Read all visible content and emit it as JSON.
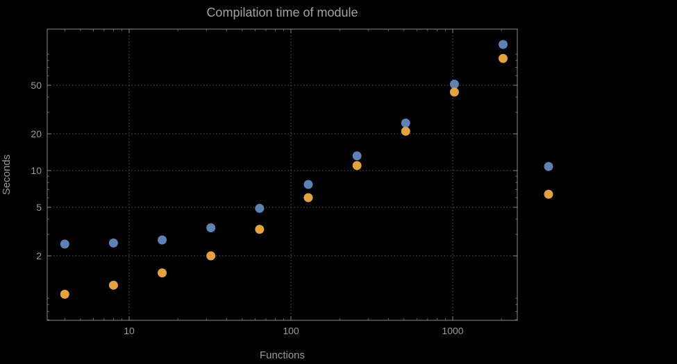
{
  "page": {
    "background": "#000000"
  },
  "chart_data": {
    "type": "scatter",
    "title": "Compilation time of module",
    "xlabel": "Functions",
    "ylabel": "Seconds",
    "x_scale": "log",
    "y_scale": "log",
    "x_ticks": [
      10,
      100,
      1000
    ],
    "y_ticks": [
      2,
      5,
      10,
      20,
      50
    ],
    "x_range": [
      3.1,
      2500
    ],
    "y_range": [
      0.59,
      145
    ],
    "grid": "dotted",
    "x": [
      4,
      8,
      16,
      32,
      64,
      128,
      256,
      512,
      1024,
      2048
    ],
    "series": [
      {
        "name": "series-blue",
        "color": "#5e82b5",
        "values": [
          2.5,
          2.55,
          2.7,
          3.4,
          4.9,
          7.7,
          13.2,
          24.5,
          51,
          108
        ]
      },
      {
        "name": "series-orange",
        "color": "#e3a23c",
        "values": [
          0.97,
          1.15,
          1.45,
          2.0,
          3.3,
          6.0,
          11,
          21,
          44,
          83
        ]
      }
    ],
    "legend": {
      "position": "right-outside",
      "markers": [
        {
          "name": "legend-marker-blue",
          "color": "#5e82b5",
          "y_value": 10.8
        },
        {
          "name": "legend-marker-orange",
          "color": "#e3a23c",
          "y_value": 6.4
        }
      ]
    }
  },
  "style": {
    "grid_color": "#5a5a5a",
    "frame_color": "#8a8a8a",
    "text_color": "#9a9a9a",
    "title_color": "#a3a3a3"
  }
}
